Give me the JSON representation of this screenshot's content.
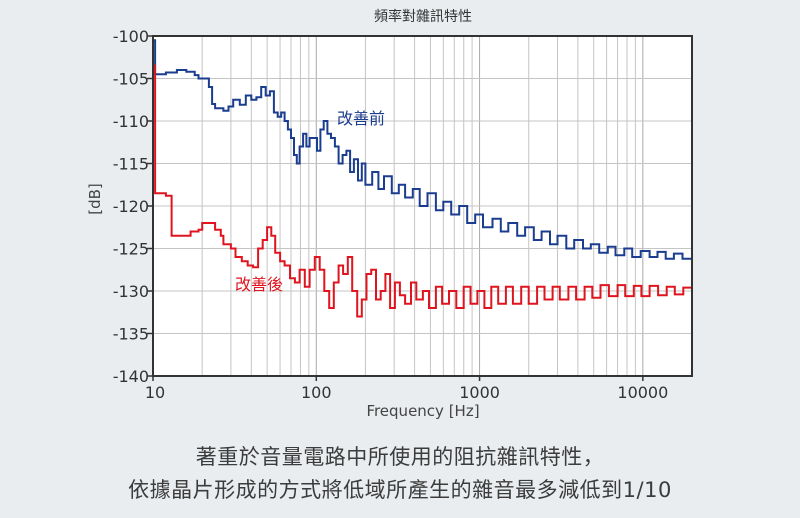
{
  "chart_data": {
    "type": "line",
    "title": "頻率對雜訊特性",
    "xlabel": "Frequency [Hz]",
    "ylabel": "[dB]",
    "xscale": "log",
    "xlim": [
      10,
      20000
    ],
    "ylim": [
      -140,
      -100
    ],
    "xticks": [
      10,
      100,
      1000,
      10000
    ],
    "xtick_labels": [
      "10",
      "100",
      "1000",
      "10000"
    ],
    "yticks": [
      -100,
      -105,
      -110,
      -115,
      -120,
      -125,
      -130,
      -135,
      -140
    ],
    "ytick_labels": [
      "-100",
      "-105",
      "-110",
      "-115",
      "-120",
      "-125",
      "-130",
      "-135",
      "-140"
    ],
    "grid": true,
    "series": [
      {
        "name": "改善前",
        "color": "#1a3d8f",
        "points": [
          [
            10,
            -100.5
          ],
          [
            10.3,
            -104.5
          ],
          [
            12,
            -104.3
          ],
          [
            14,
            -104
          ],
          [
            16,
            -104.2
          ],
          [
            18,
            -104.6
          ],
          [
            19,
            -105
          ],
          [
            21,
            -105
          ],
          [
            22,
            -106
          ],
          [
            23,
            -108
          ],
          [
            24,
            -108.5
          ],
          [
            27,
            -108.8
          ],
          [
            29,
            -108.3
          ],
          [
            31,
            -107.5
          ],
          [
            34,
            -108.1
          ],
          [
            37,
            -107
          ],
          [
            40,
            -107.5
          ],
          [
            43,
            -107.2
          ],
          [
            46,
            -106
          ],
          [
            49,
            -107
          ],
          [
            52,
            -106.5
          ],
          [
            55,
            -109
          ],
          [
            58,
            -109.5
          ],
          [
            61,
            -109
          ],
          [
            64,
            -110
          ],
          [
            67,
            -111
          ],
          [
            70,
            -112
          ],
          [
            73,
            -114
          ],
          [
            76,
            -115
          ],
          [
            79,
            -113
          ],
          [
            83,
            -111.5
          ],
          [
            87,
            -113
          ],
          [
            91,
            -112
          ],
          [
            96,
            -112
          ],
          [
            101,
            -113.5
          ],
          [
            106,
            -111
          ],
          [
            111,
            -110
          ],
          [
            117,
            -111.5
          ],
          [
            123,
            -112
          ],
          [
            130,
            -113
          ],
          [
            137,
            -115
          ],
          [
            145,
            -114
          ],
          [
            153,
            -113.5
          ],
          [
            161,
            -116
          ],
          [
            170,
            -114.5
          ],
          [
            180,
            -117
          ],
          [
            190,
            -115
          ],
          [
            200,
            -117.5
          ],
          [
            220,
            -116
          ],
          [
            240,
            -118
          ],
          [
            260,
            -116.5
          ],
          [
            290,
            -118.5
          ],
          [
            320,
            -117.5
          ],
          [
            350,
            -119
          ],
          [
            390,
            -118
          ],
          [
            430,
            -120
          ],
          [
            480,
            -118.5
          ],
          [
            540,
            -120.5
          ],
          [
            600,
            -119.5
          ],
          [
            670,
            -121
          ],
          [
            750,
            -120
          ],
          [
            840,
            -122
          ],
          [
            940,
            -121
          ],
          [
            1050,
            -122.5
          ],
          [
            1200,
            -121.5
          ],
          [
            1350,
            -123
          ],
          [
            1500,
            -122
          ],
          [
            1700,
            -123.5
          ],
          [
            1900,
            -122.5
          ],
          [
            2150,
            -124
          ],
          [
            2400,
            -123
          ],
          [
            2700,
            -124.5
          ],
          [
            3000,
            -123.5
          ],
          [
            3400,
            -125
          ],
          [
            3800,
            -124
          ],
          [
            4300,
            -125
          ],
          [
            4800,
            -124.5
          ],
          [
            5400,
            -125.5
          ],
          [
            6100,
            -124.8
          ],
          [
            6800,
            -125.8
          ],
          [
            7700,
            -125
          ],
          [
            8600,
            -126
          ],
          [
            9700,
            -125.3
          ],
          [
            11000,
            -126
          ],
          [
            12300,
            -125.4
          ],
          [
            13800,
            -126.2
          ],
          [
            15500,
            -125.6
          ],
          [
            17500,
            -126.2
          ],
          [
            20000,
            -125.8
          ]
        ]
      },
      {
        "name": "改善後",
        "color": "#e0141e",
        "points": [
          [
            10,
            -103.5
          ],
          [
            10.3,
            -118.5
          ],
          [
            11,
            -118.5
          ],
          [
            12,
            -118.8
          ],
          [
            13,
            -123.5
          ],
          [
            16,
            -123.5
          ],
          [
            17,
            -123
          ],
          [
            19,
            -122.8
          ],
          [
            20,
            -122
          ],
          [
            23,
            -122
          ],
          [
            24,
            -122.8
          ],
          [
            26,
            -123.5
          ],
          [
            27,
            -124.5
          ],
          [
            30,
            -125
          ],
          [
            32,
            -126
          ],
          [
            35,
            -126.5
          ],
          [
            38,
            -127
          ],
          [
            41,
            -127.2
          ],
          [
            44,
            -125
          ],
          [
            47,
            -124
          ],
          [
            50,
            -122.5
          ],
          [
            53,
            -123.5
          ],
          [
            56,
            -125.5
          ],
          [
            60,
            -126.5
          ],
          [
            64,
            -127
          ],
          [
            69,
            -128.5
          ],
          [
            74,
            -129
          ],
          [
            79,
            -127.5
          ],
          [
            85,
            -129.5
          ],
          [
            91,
            -127.5
          ],
          [
            98,
            -126
          ],
          [
            105,
            -127.5
          ],
          [
            112,
            -130
          ],
          [
            120,
            -132
          ],
          [
            128,
            -129
          ],
          [
            137,
            -127
          ],
          [
            146,
            -128
          ],
          [
            156,
            -126
          ],
          [
            166,
            -130
          ],
          [
            178,
            -133
          ],
          [
            190,
            -131
          ],
          [
            203,
            -128
          ],
          [
            217,
            -127.5
          ],
          [
            232,
            -131
          ],
          [
            248,
            -130
          ],
          [
            265,
            -128
          ],
          [
            283,
            -132
          ],
          [
            303,
            -129
          ],
          [
            325,
            -130.5
          ],
          [
            350,
            -131.5
          ],
          [
            380,
            -129
          ],
          [
            410,
            -131
          ],
          [
            450,
            -130
          ],
          [
            490,
            -132
          ],
          [
            540,
            -129.5
          ],
          [
            590,
            -131.5
          ],
          [
            650,
            -130
          ],
          [
            720,
            -132
          ],
          [
            800,
            -129.5
          ],
          [
            880,
            -131.5
          ],
          [
            970,
            -130
          ],
          [
            1070,
            -132
          ],
          [
            1180,
            -129.5
          ],
          [
            1300,
            -131.5
          ],
          [
            1450,
            -129.5
          ],
          [
            1600,
            -131.5
          ],
          [
            1800,
            -129.5
          ],
          [
            2000,
            -131.5
          ],
          [
            2250,
            -129.5
          ],
          [
            2500,
            -131
          ],
          [
            2800,
            -129.5
          ],
          [
            3100,
            -131
          ],
          [
            3500,
            -129.5
          ],
          [
            3900,
            -131
          ],
          [
            4400,
            -129.5
          ],
          [
            4900,
            -130.8
          ],
          [
            5500,
            -129.3
          ],
          [
            6200,
            -130.6
          ],
          [
            7000,
            -129.3
          ],
          [
            7800,
            -130.6
          ],
          [
            8800,
            -129.4
          ],
          [
            9800,
            -130.6
          ],
          [
            11000,
            -129.4
          ],
          [
            12400,
            -130.5
          ],
          [
            14000,
            -129.5
          ],
          [
            15700,
            -130.4
          ],
          [
            17700,
            -129.6
          ],
          [
            20000,
            -130
          ]
        ]
      }
    ]
  },
  "caption": {
    "line1": "著重於音量電路中所使用的阻抗雜訊特性，",
    "line2": "依據晶片形成的方式將低域所產生的雜音最多減低到1/10"
  }
}
